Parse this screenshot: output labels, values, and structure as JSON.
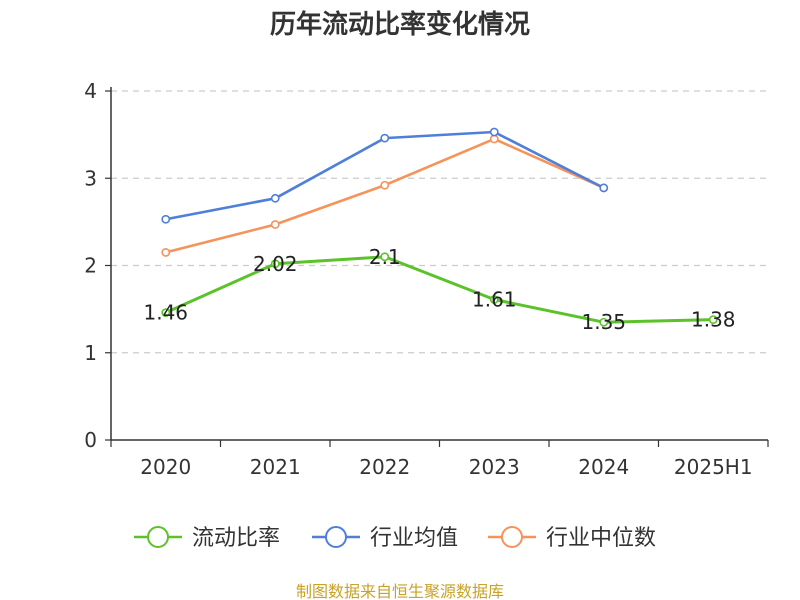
{
  "chart_data": {
    "type": "line",
    "title": "历年流动比率变化情况",
    "categories": [
      "2020",
      "2021",
      "2022",
      "2023",
      "2024",
      "2025H1"
    ],
    "ylim": [
      0,
      4
    ],
    "yticks": [
      0,
      1,
      2,
      3,
      4
    ],
    "grid": true,
    "legend_position": "bottom",
    "series": [
      {
        "name": "流动比率",
        "color": "#5cc22a",
        "values": [
          1.46,
          2.02,
          2.1,
          1.61,
          1.35,
          1.38
        ],
        "labels": [
          "1.46",
          "2.02",
          "2.1",
          "1.61",
          "1.35",
          "1.38"
        ]
      },
      {
        "name": "行业均值",
        "color": "#4f7fd9",
        "values": [
          2.53,
          2.77,
          3.46,
          3.53,
          2.89,
          null
        ]
      },
      {
        "name": "行业中位数",
        "color": "#f5935a",
        "values": [
          2.15,
          2.47,
          2.92,
          3.45,
          2.89,
          null
        ]
      }
    ],
    "source": "制图数据来自恒生聚源数据库"
  }
}
